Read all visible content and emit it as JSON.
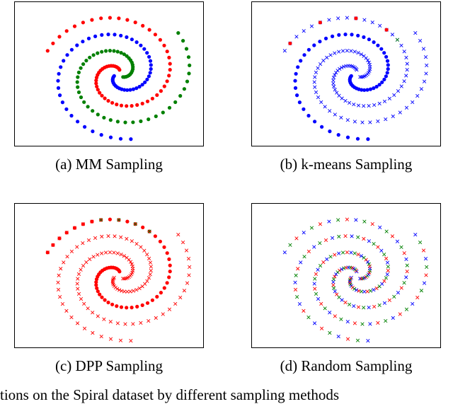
{
  "chart_data": [
    {
      "type": "scatter",
      "caption": "(a) MM Sampling",
      "series": [
        {
          "arm": 0,
          "color": "#0000ff",
          "marker": "dot"
        },
        {
          "arm": 1,
          "color": "#ff0000",
          "marker": "dot"
        },
        {
          "arm": 2,
          "color": "#008000",
          "marker": "dot"
        }
      ]
    },
    {
      "type": "scatter",
      "caption": "(b) k-means Sampling",
      "series": [
        {
          "arm": 0,
          "color": "#0000ff",
          "marker": "dot"
        },
        {
          "arm": 1,
          "color": "#0000ff",
          "marker": "cross"
        },
        {
          "arm": 2,
          "color": "#0000ff",
          "marker": "cross"
        }
      ],
      "accents": [
        {
          "arm": 1,
          "from": 0.76,
          "to": 1.0,
          "color": "#ff0000",
          "marker": "dot",
          "every": 4
        },
        {
          "arm": 1,
          "from": 0.7,
          "to": 0.76,
          "color": "#008000",
          "marker": "cross",
          "every": 6
        }
      ]
    },
    {
      "type": "scatter",
      "caption": "(c) DPP Sampling",
      "series": [
        {
          "arm": 0,
          "color": "#ff0000",
          "marker": "cross"
        },
        {
          "arm": 1,
          "color": "#ff0000",
          "marker": "dot"
        },
        {
          "arm": 2,
          "color": "#ff0000",
          "marker": "cross"
        }
      ],
      "accents": [
        {
          "arm": 1,
          "from": 0.74,
          "to": 0.88,
          "color": "#008000",
          "marker": "cross",
          "every": 2
        },
        {
          "arm": 1,
          "from": 0.88,
          "to": 1.0,
          "color": "#ff0000",
          "marker": "cross",
          "every": 1
        }
      ]
    },
    {
      "type": "scatter",
      "caption": "(d) Random Sampling",
      "mixed": true,
      "palette": [
        "#0000ff",
        "#ff0000",
        "#008000"
      ],
      "series": [
        {
          "arm": 0,
          "color": "mixed",
          "marker": "cross"
        },
        {
          "arm": 1,
          "color": "mixed",
          "marker": "cross"
        },
        {
          "arm": 2,
          "color": "mixed",
          "marker": "cross"
        }
      ]
    }
  ],
  "bottom_text_visible": "tions on the Spiral dataset by different sampling methods"
}
